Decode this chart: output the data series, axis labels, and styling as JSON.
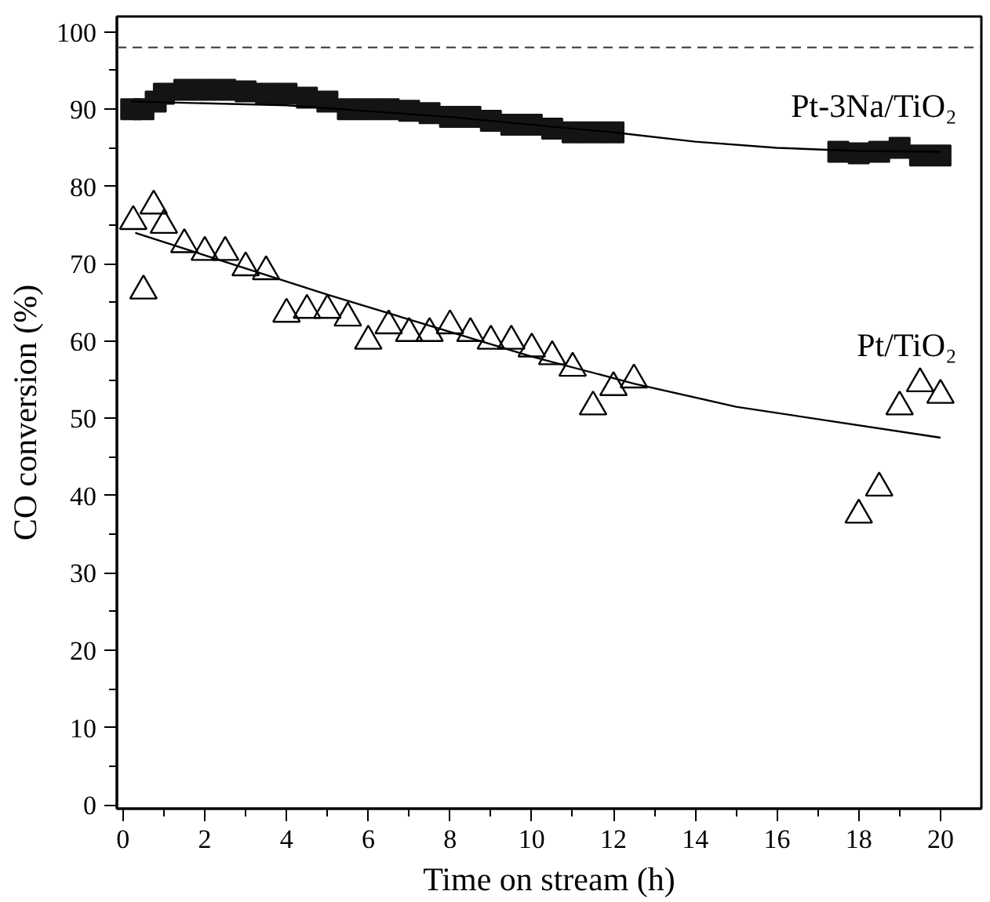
{
  "chart_data": {
    "type": "scatter",
    "xlabel": "Time on stream (h)",
    "ylabel": "CO conversion (%)",
    "xlim": [
      -0.15,
      21
    ],
    "ylim": [
      -0.5,
      102
    ],
    "xticks": [
      0,
      2,
      4,
      6,
      8,
      10,
      12,
      14,
      16,
      18,
      20
    ],
    "yticks": [
      0,
      10,
      20,
      30,
      40,
      50,
      60,
      70,
      80,
      90,
      100
    ],
    "grid": false,
    "ref_lines": [
      {
        "axis": "y",
        "value": 98,
        "color": "#333333",
        "line_style": "dashed"
      }
    ],
    "series": [
      {
        "name": "Pt-3Na/TiO₂",
        "color": "#141414",
        "marker": "square",
        "x": [
          0.2,
          0.5,
          0.8,
          1,
          1.5,
          2,
          2.5,
          3,
          3.5,
          4,
          4.5,
          5,
          5.5,
          6,
          6.5,
          7,
          7.5,
          8,
          8.5,
          9,
          9.5,
          10,
          10.5,
          11,
          11.5,
          12,
          17.5,
          18,
          18.5,
          19,
          19.5,
          20
        ],
        "values": [
          90,
          90,
          91,
          92,
          92.5,
          92.5,
          92.5,
          92.3,
          92,
          92,
          91.5,
          91,
          90,
          90,
          90,
          89.8,
          89.5,
          89,
          89,
          88.5,
          88,
          88,
          87.5,
          87,
          87,
          87,
          84.5,
          84.3,
          84.5,
          85,
          84,
          84
        ]
      },
      {
        "name": "Pt/TiO₂",
        "color": "#000000",
        "marker": "triangle",
        "x": [
          0.25,
          0.5,
          0.75,
          1,
          1.5,
          2,
          2.5,
          3,
          3.5,
          4,
          4.5,
          5,
          5.5,
          6,
          6.5,
          7,
          7.5,
          8,
          8.5,
          9,
          9.5,
          10,
          10.5,
          11,
          11.5,
          12,
          12.5,
          18,
          18.5,
          19,
          19.5,
          20
        ],
        "values": [
          75.5,
          66.5,
          77.5,
          75,
          72.5,
          71.5,
          71.5,
          69.5,
          69,
          63.5,
          64,
          64,
          63,
          60,
          62,
          61,
          61,
          62,
          61,
          60,
          60,
          59,
          58,
          56.5,
          51.5,
          54,
          55,
          37.5,
          41,
          51.5,
          54.5,
          53
        ]
      },
      {
        "type": "line",
        "color": "#000000",
        "x": [
          0.2,
          4,
          8,
          12,
          14,
          16,
          18,
          20
        ],
        "values": [
          91,
          90.5,
          89,
          87,
          85.8,
          85,
          84.6,
          84.5
        ]
      },
      {
        "type": "line",
        "color": "#000000",
        "x": [
          0.3,
          5,
          10,
          12.5,
          15,
          20
        ],
        "values": [
          74,
          66,
          58,
          54.5,
          51.5,
          47.5
        ]
      }
    ]
  }
}
